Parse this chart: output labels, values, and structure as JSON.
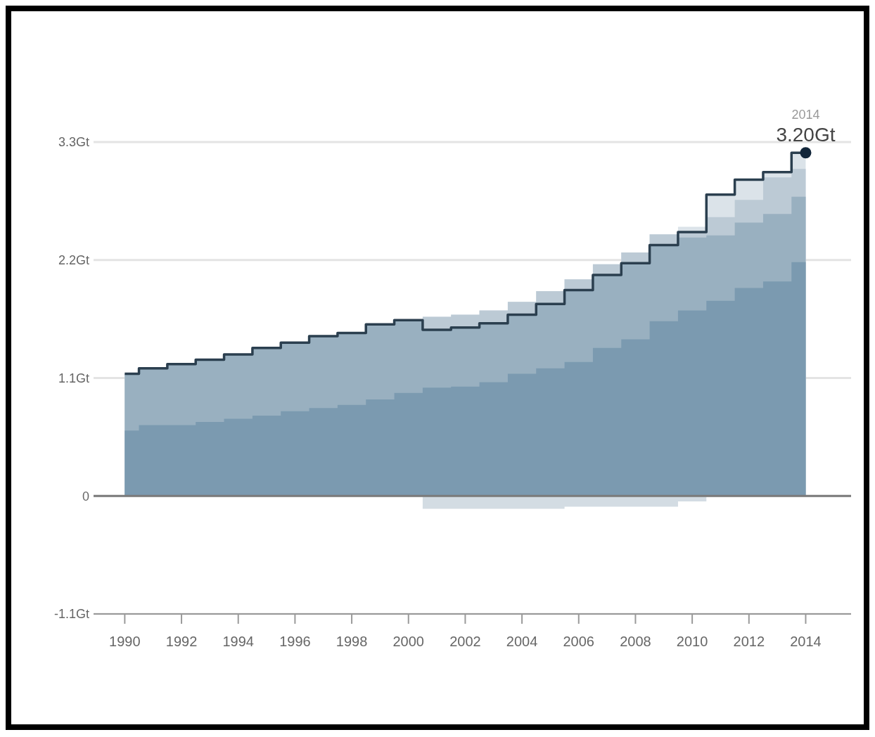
{
  "chart_data": {
    "type": "area",
    "x": [
      1990,
      1991,
      1992,
      1993,
      1994,
      1995,
      1996,
      1997,
      1998,
      1999,
      2000,
      2001,
      2002,
      2003,
      2004,
      2005,
      2006,
      2007,
      2008,
      2009,
      2010,
      2011,
      2012,
      2013,
      2014
    ],
    "series": [
      {
        "color": "#dbe3e9",
        "values": [
          1.14,
          1.19,
          1.23,
          1.27,
          1.32,
          1.38,
          1.43,
          1.49,
          1.52,
          1.6,
          1.64,
          1.67,
          1.69,
          1.73,
          1.81,
          1.91,
          2.02,
          2.16,
          2.27,
          2.44,
          2.51,
          2.81,
          2.95,
          3.02,
          3.2
        ]
      },
      {
        "color": "#bccad5",
        "values": [
          1.14,
          1.19,
          1.23,
          1.27,
          1.32,
          1.38,
          1.43,
          1.49,
          1.52,
          1.6,
          1.64,
          1.67,
          1.69,
          1.73,
          1.81,
          1.91,
          2.02,
          2.16,
          2.27,
          2.44,
          2.46,
          2.6,
          2.76,
          2.97,
          3.05
        ]
      },
      {
        "color": "#99b0c0",
        "values": [
          1.14,
          1.19,
          1.23,
          1.27,
          1.32,
          1.38,
          1.43,
          1.49,
          1.52,
          1.6,
          1.64,
          1.55,
          1.57,
          1.61,
          1.69,
          1.79,
          1.92,
          2.06,
          2.17,
          2.34,
          2.41,
          2.43,
          2.55,
          2.63,
          2.79
        ]
      },
      {
        "color": "#7b9ab0",
        "values": [
          0.61,
          0.66,
          0.66,
          0.69,
          0.72,
          0.75,
          0.79,
          0.82,
          0.85,
          0.9,
          0.96,
          1.01,
          1.02,
          1.06,
          1.14,
          1.19,
          1.25,
          1.38,
          1.46,
          1.63,
          1.73,
          1.82,
          1.94,
          2.0,
          2.18
        ]
      },
      {
        "color": "#d3dce3",
        "values": [
          0,
          0,
          0,
          0,
          0,
          0,
          0,
          0,
          0,
          0,
          0,
          -0.12,
          -0.12,
          -0.12,
          -0.12,
          -0.12,
          -0.1,
          -0.1,
          -0.1,
          -0.1,
          -0.05,
          0,
          0,
          0,
          0
        ]
      },
      {
        "type": "step",
        "color": "#2b3f4f",
        "values": [
          1.14,
          1.19,
          1.23,
          1.27,
          1.32,
          1.38,
          1.43,
          1.49,
          1.52,
          1.6,
          1.64,
          1.55,
          1.57,
          1.61,
          1.69,
          1.79,
          1.92,
          2.06,
          2.17,
          2.34,
          2.46,
          2.81,
          2.95,
          3.02,
          3.2
        ]
      },
      {
        "type": "scatter",
        "color": "#12263a",
        "x": [
          2014
        ],
        "values": [
          3.2
        ]
      }
    ],
    "xlim": [
      1988.9,
      2015.6
    ],
    "ylim": [
      -1.1,
      3.3
    ],
    "xticks": [
      1990,
      1992,
      1994,
      1996,
      1998,
      2000,
      2002,
      2004,
      2006,
      2008,
      2010,
      2012,
      2014
    ],
    "yticks": [
      {
        "value": -1.1,
        "label": "-1.1Gt"
      },
      0,
      {
        "value": 1.1,
        "label": "1.1Gt"
      },
      {
        "value": 2.2,
        "label": "2.2Gt"
      },
      {
        "value": 3.3,
        "label": "3.3Gt"
      }
    ],
    "grid": "y",
    "ref_lines": [
      {
        "axis": "y",
        "value": 0,
        "color": "#7a7a7a"
      }
    ],
    "annotations": [
      {
        "text": "2014",
        "x": 2014,
        "y": 3.2
      },
      {
        "text": "3.20Gt",
        "x": 2014,
        "y": 3.2
      }
    ]
  }
}
